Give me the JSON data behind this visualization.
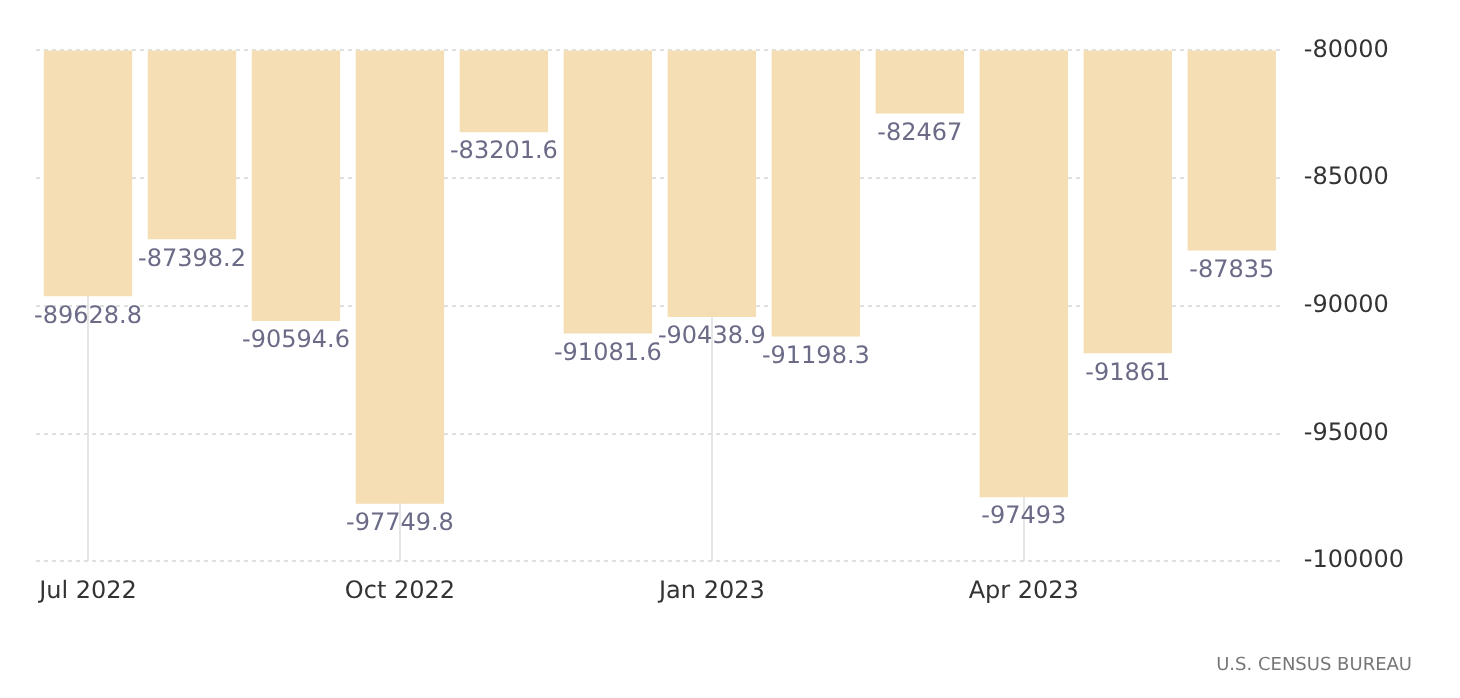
{
  "chart_data": {
    "type": "bar",
    "categories": [
      "Jul 2022",
      null,
      null,
      "Oct 2022",
      null,
      null,
      "Jan 2023",
      null,
      null,
      "Apr 2023",
      null,
      null
    ],
    "values": [
      -89628.8,
      -87398.2,
      -90594.6,
      -97749.8,
      -83201.6,
      -91081.6,
      -90438.9,
      -91198.3,
      -82467,
      -97493,
      -91861,
      -87835
    ],
    "color": "#f5deb3",
    "ylim": [
      -100000,
      -80000
    ],
    "yticks": [
      -100000,
      -95000,
      -90000,
      -85000,
      -80000
    ],
    "grid": true,
    "data_labels": true,
    "annotations": [
      "U.S. CENSUS BUREAU"
    ]
  }
}
